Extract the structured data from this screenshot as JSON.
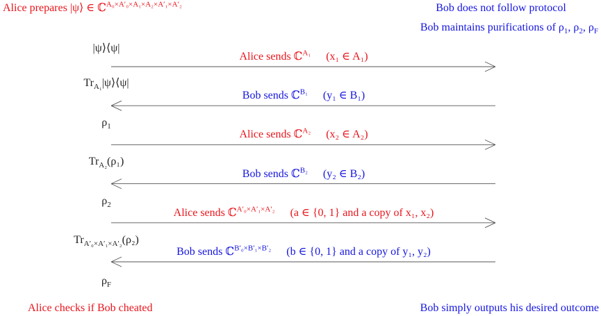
{
  "header": {
    "alice": [
      {
        "t": "Alice prepares |ψ⟩ ∈ ℂ"
      },
      {
        "sup": "A₀×A′₀×A₁×A₂×A′₁×A′₂"
      }
    ],
    "bob_line_1": [
      {
        "t": "Bob does not follow protocol"
      }
    ],
    "bob_line_2": [
      {
        "t": "Bob maintains purifications of ρ"
      },
      {
        "sub": "1"
      },
      {
        "t": ", ρ"
      },
      {
        "sub": "2"
      },
      {
        "t": ", ρ"
      },
      {
        "sub": "F"
      }
    ]
  },
  "states": [
    [
      {
        "t": "|ψ⟩⟨ψ|"
      }
    ],
    [
      {
        "t": "Tr"
      },
      {
        "sub": "A₁"
      },
      {
        "t": "|ψ⟩⟨ψ|"
      }
    ],
    [
      {
        "t": "ρ"
      },
      {
        "sub": "1"
      }
    ],
    [
      {
        "t": "Tr"
      },
      {
        "sub": "A₂"
      },
      {
        "t": "(ρ₁)"
      }
    ],
    [
      {
        "t": "ρ"
      },
      {
        "sub": "2"
      }
    ],
    [
      {
        "t": "Tr"
      },
      {
        "sub": "A′₀×A′₁×A′₂"
      },
      {
        "t": "(ρ₂)"
      }
    ],
    [
      {
        "t": "ρ"
      },
      {
        "sub": "F"
      }
    ]
  ],
  "messages": [
    {
      "label": [
        {
          "t": "Alice sends ℂ"
        },
        {
          "sup": "A₁"
        }
      ],
      "note": [
        {
          "t": "(x₁ ∈ A₁)"
        }
      ]
    },
    {
      "label": [
        {
          "t": "Bob sends ℂ"
        },
        {
          "sup": "B₁"
        }
      ],
      "note": [
        {
          "t": "(y₁ ∈ B₁)"
        }
      ]
    },
    {
      "label": [
        {
          "t": "Alice sends ℂ"
        },
        {
          "sup": "A₂"
        }
      ],
      "note": [
        {
          "t": "(x₂ ∈ A₂)"
        }
      ]
    },
    {
      "label": [
        {
          "t": "Bob sends ℂ"
        },
        {
          "sup": "B₂"
        }
      ],
      "note": [
        {
          "t": "(y₂ ∈ B₂)"
        }
      ]
    },
    {
      "label": [
        {
          "t": "Alice sends ℂ"
        },
        {
          "sup": "A′₀×A′₁×A′₂"
        }
      ],
      "note": [
        {
          "t": "(a ∈ {0, 1} and a copy of x₁, x₂)"
        }
      ]
    },
    {
      "label": [
        {
          "t": "Bob sends ℂ"
        },
        {
          "sup": "B′₀×B′₁×B′₂"
        }
      ],
      "note": [
        {
          "t": "(b ∈ {0, 1} and a copy of y₁, y₂)"
        }
      ]
    }
  ],
  "footer": {
    "alice": [
      {
        "t": "Alice checks if Bob cheated"
      }
    ],
    "bob": [
      {
        "t": "Bob simply outputs his desired outcome"
      }
    ]
  }
}
